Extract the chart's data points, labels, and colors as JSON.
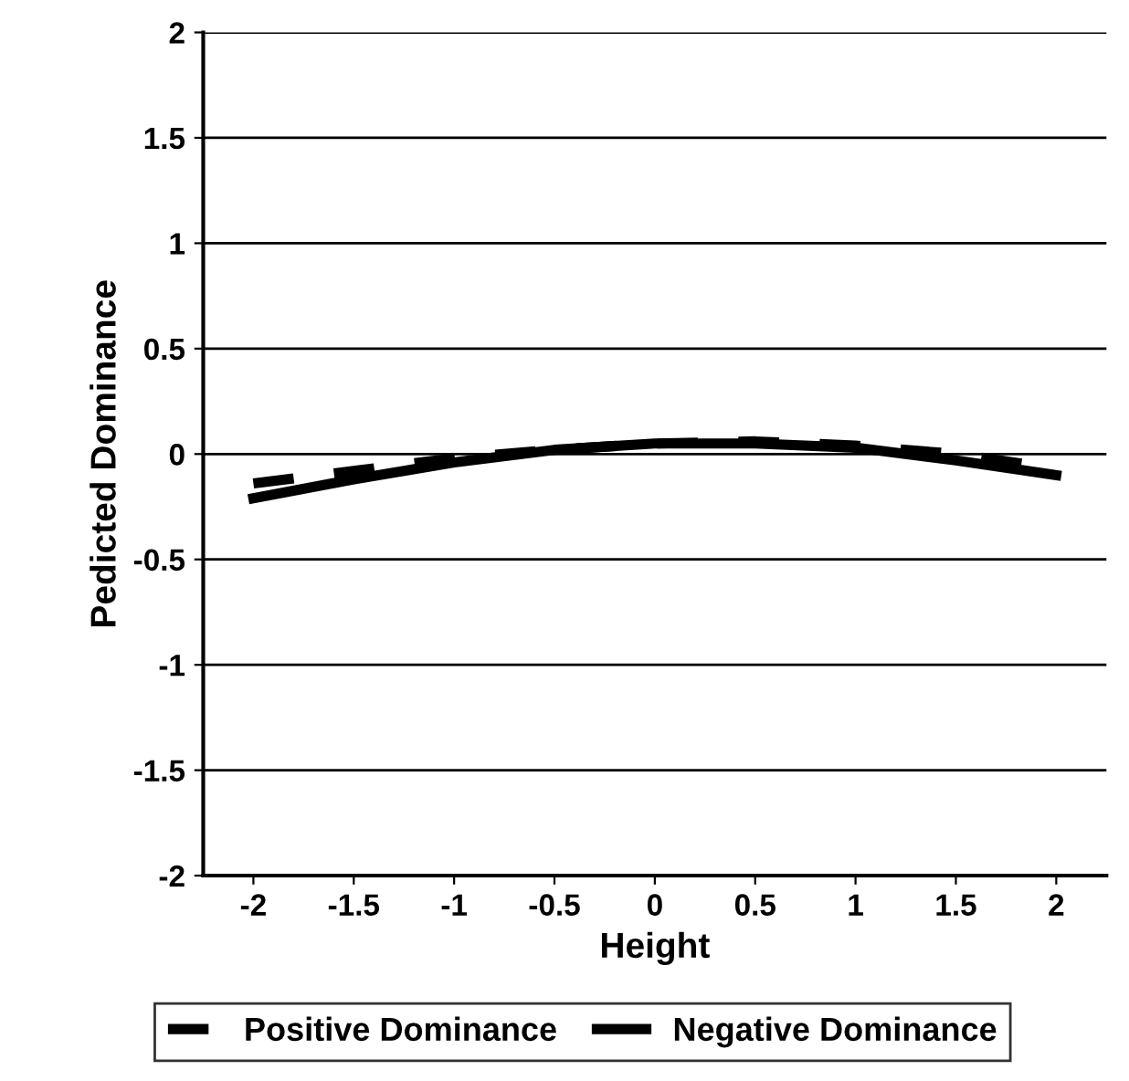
{
  "chart_data": {
    "type": "line",
    "xlabel": "Height",
    "ylabel": "Pedicted Dominance",
    "x": [
      -2,
      -1.5,
      -1,
      -0.5,
      0,
      0.5,
      1,
      1.5,
      2
    ],
    "series": [
      {
        "name": "Positive Dominance",
        "color": "#000000",
        "line_style": "dashed",
        "values": [
          -0.14,
          -0.08,
          -0.02,
          0.02,
          0.05,
          0.06,
          0.04,
          0.0,
          -0.07
        ]
      },
      {
        "name": "Negative Dominance",
        "color": "#000000",
        "line_style": "solid",
        "values": [
          -0.21,
          -0.12,
          -0.04,
          0.02,
          0.05,
          0.05,
          0.03,
          -0.03,
          -0.1
        ]
      }
    ],
    "xlim": [
      -2.25,
      2.25
    ],
    "xticks": [
      -2,
      -1.5,
      -1,
      -0.5,
      0,
      0.5,
      1,
      1.5,
      2
    ],
    "ylim": [
      -2,
      2
    ],
    "yticks": [
      -2,
      -1.5,
      -1,
      -0.5,
      0,
      0.5,
      1,
      1.5,
      2
    ],
    "grid": "y",
    "legend": "bottom",
    "marker": "none"
  }
}
